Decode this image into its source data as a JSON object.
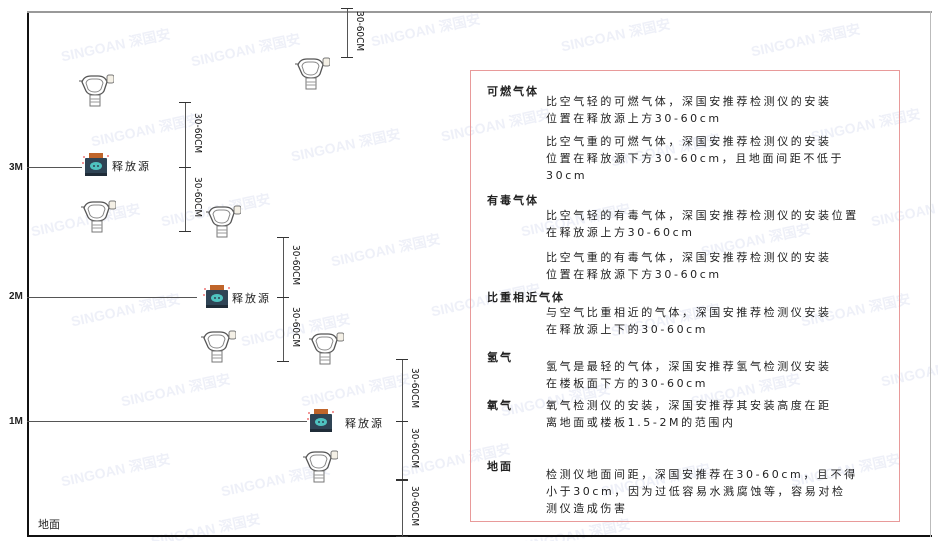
{
  "watermark": "SINGOAN 深国安",
  "levels": {
    "m3": "3M",
    "m2": "2M",
    "m1": "1M",
    "ground": "地面"
  },
  "source_label": "释放源",
  "dimension_label": "30-60CM",
  "colors": {
    "box_border": "#e89a9a",
    "source_body": "#2f4455",
    "source_top": "#c0652a",
    "source_face": "#4fc3c0"
  },
  "panel": {
    "sections": [
      {
        "title": "可燃气体",
        "paras": [
          [
            "比空气轻的可燃气体，深国安推荐检测仪的安装",
            "位置在释放源上方30-60cm"
          ],
          [
            "比空气重的可燃气体，深国安推荐检测仪的安装",
            "位置在释放源下方30-60cm，且地面间距不低于",
            "30cm"
          ]
        ]
      },
      {
        "title": "有毒气体",
        "paras": [
          [
            "比空气轻的有毒气体，深国安推荐检测仪的安装位置",
            "在释放源上方30-60cm"
          ],
          [
            "比空气重的有毒气体，深国安推荐检测仪的安装",
            "位置在释放源下方30-60cm"
          ]
        ]
      },
      {
        "title": "比重相近气体",
        "paras": [
          [
            "与空气比重相近的气体，深国安推荐检测仪安装",
            "在释放源上下的30-60cm"
          ]
        ]
      },
      {
        "title": "氢气",
        "paras": [
          [
            "氢气是最轻的气体，深国安推荐氢气检测仪安装",
            "在楼板面下方的30-60cm"
          ]
        ]
      },
      {
        "title": "氧气",
        "paras": [
          [
            "氧气检测仪的安装，深国安推荐其安装高度在距",
            "离地面或楼板1.5-2M的范围内"
          ]
        ]
      },
      {
        "title": "地面",
        "paras": [
          [
            "检测仪地面间距，深国安推荐在30-60cm，且不得",
            "小于30cm，因为过低容易水溅腐蚀等，容易对检",
            "测仪造成伤害"
          ]
        ]
      }
    ]
  }
}
